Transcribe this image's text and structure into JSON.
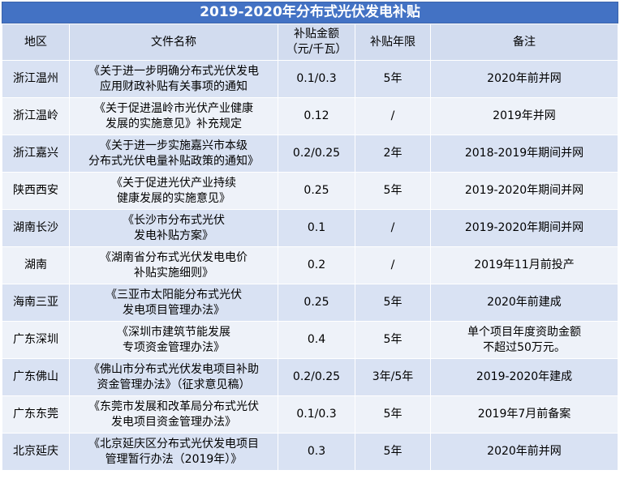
{
  "title": "2019-2020年分布式光伏发电补贴",
  "headers": {
    "region": "地区",
    "document": "文件名称",
    "amount_line1": "补贴金额",
    "amount_line2": "（元/千瓦）",
    "years": "补贴年限",
    "note": "备注"
  },
  "rows": [
    {
      "region": "浙江温州",
      "doc1": "《关于进一步明确分布式光伏发电",
      "doc2": "应用财政补贴有关事项的通知",
      "amount": "0.1/0.3",
      "years": "5年",
      "note1": "2020年前并网",
      "note2": ""
    },
    {
      "region": "浙江温岭",
      "doc1": "《关于促进温岭市光伏产业健康",
      "doc2": "发展的实施意见》补充规定",
      "amount": "0.12",
      "years": "/",
      "note1": "2019年并网",
      "note2": ""
    },
    {
      "region": "浙江嘉兴",
      "doc1": "《关于进一步实施嘉兴市本级",
      "doc2": "分布式光伏电量补贴政策的通知》",
      "amount": "0.2/0.25",
      "years": "2年",
      "note1": "2018-2019年期间并网",
      "note2": ""
    },
    {
      "region": "陕西西安",
      "doc1": "《关于促进光伏产业持续",
      "doc2": "健康发展的实施意见》",
      "amount": "0.25",
      "years": "5年",
      "note1": "2019-2020年期间并网",
      "note2": ""
    },
    {
      "region": "湖南长沙",
      "doc1": "《长沙市分布式光伏",
      "doc2": "发电补贴方案》",
      "amount": "0.1",
      "years": "/",
      "note1": "2019-2020年期间并网",
      "note2": ""
    },
    {
      "region": "湖南",
      "doc1": "《湖南省分布式光伏发电电价",
      "doc2": "补贴实施细则》",
      "amount": "0.2",
      "years": "/",
      "note1": "2019年11月前投产",
      "note2": ""
    },
    {
      "region": "海南三亚",
      "doc1": "《三亚市太阳能分布式光伏",
      "doc2": "发电项目管理办法》",
      "amount": "0.25",
      "years": "5年",
      "note1": "2020年前建成",
      "note2": ""
    },
    {
      "region": "广东深圳",
      "doc1": "《深圳市建筑节能发展",
      "doc2": "专项资金管理办法》",
      "amount": "0.4",
      "years": "5年",
      "note1": "单个项目年度资助金额",
      "note2": "不超过50万元。"
    },
    {
      "region": "广东佛山",
      "doc1": "《佛山市分布式光伏发电项目补助",
      "doc2": "资金管理办法》（征求意见稿）",
      "amount": "0.2/0.25",
      "years": "3年/5年",
      "note1": "2019-2020年建成",
      "note2": ""
    },
    {
      "region": "广东东莞",
      "doc1": "《东莞市发展和改革局分布式光伏",
      "doc2": "发电项目资金管理办法》",
      "amount": "0.1/0.3",
      "years": "5年",
      "note1": "2019年7月前备案",
      "note2": ""
    },
    {
      "region": "北京延庆",
      "doc1": "《北京延庆区分布式光伏发电项目",
      "doc2": "管理暂行办法（2019年）》",
      "amount": "0.3",
      "years": "5年",
      "note1": "2020年前并网",
      "note2": ""
    }
  ]
}
